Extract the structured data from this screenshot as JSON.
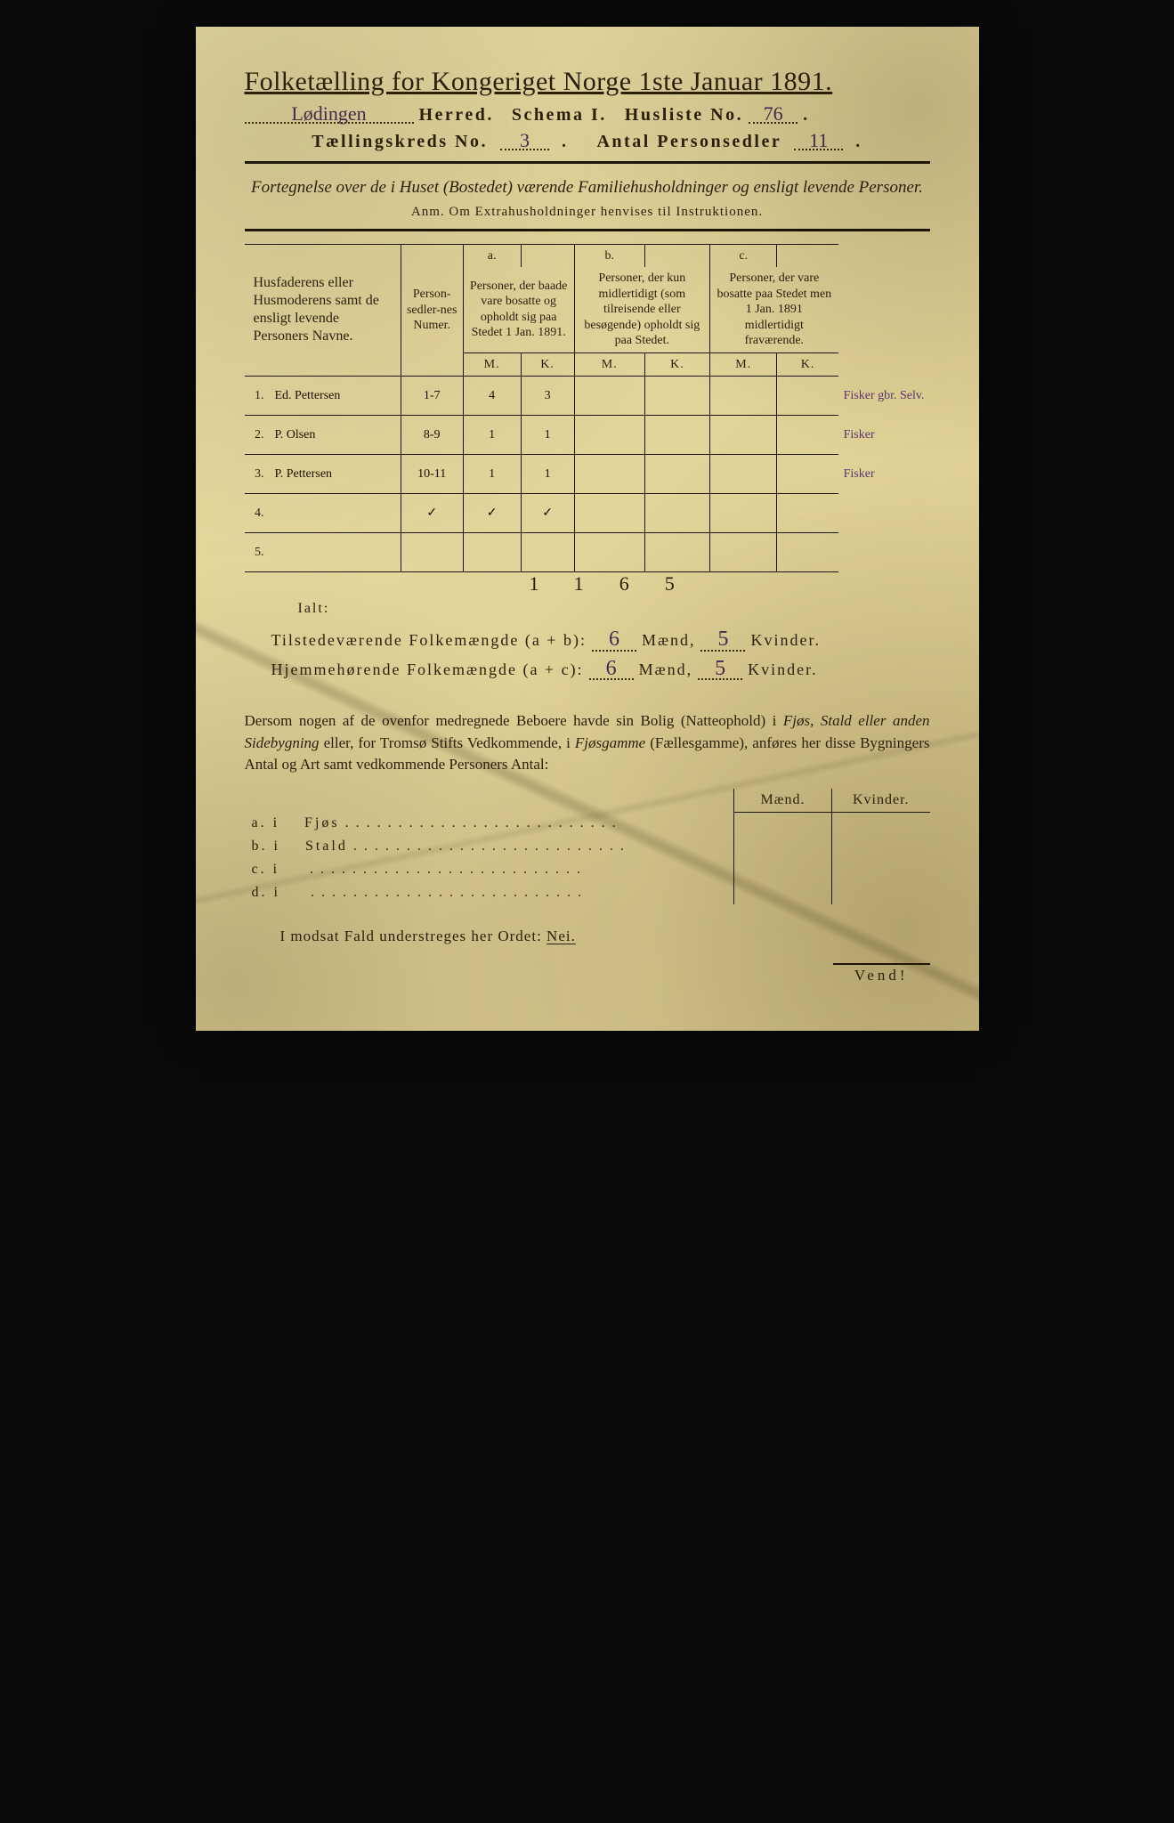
{
  "header": {
    "title": "Folketælling for Kongeriget Norge 1ste Januar 1891.",
    "herred_value": "Lødingen",
    "herred_label": "Herred.",
    "schema_label": "Schema I.",
    "husliste_label": "Husliste No.",
    "husliste_value": "76",
    "kreds_label": "Tællingskreds No.",
    "kreds_value": "3",
    "antal_label": "Antal Personsedler",
    "antal_value": "11"
  },
  "subtitle": "Fortegnelse over de i Huset (Bostedet) værende Familiehusholdninger og ensligt levende Personer.",
  "anm": "Anm.  Om Extrahusholdninger henvises til Instruktionen.",
  "table": {
    "col_name": "Husfaderens eller Husmoderens samt de ensligt levende Personers Navne.",
    "col_num": "Person-sedler-nes Numer.",
    "col_a_head": "a.",
    "col_a": "Personer, der baade vare bosatte og opholdt sig paa Stedet 1 Jan. 1891.",
    "col_b_head": "b.",
    "col_b": "Personer, der kun midlertidigt (som tilreisende eller besøgende) opholdt sig paa Stedet.",
    "col_c_head": "c.",
    "col_c": "Personer, der vare bosatte paa Stedet men 1 Jan. 1891 midlertidigt fraværende.",
    "m": "M.",
    "k": "K.",
    "rows": [
      {
        "n": "1.",
        "name": "Ed. Pettersen",
        "num": "1-7",
        "am": "4",
        "ak": "3",
        "bm": "",
        "bk": "",
        "cm": "",
        "ck": "",
        "note": "Fisker gbr. Selv."
      },
      {
        "n": "2.",
        "name": "P. Olsen",
        "num": "8-9",
        "am": "1",
        "ak": "1",
        "bm": "",
        "bk": "",
        "cm": "",
        "ck": "",
        "note": "Fisker"
      },
      {
        "n": "3.",
        "name": "P. Pettersen",
        "num": "10-11",
        "am": "1",
        "ak": "1",
        "bm": "",
        "bk": "",
        "cm": "",
        "ck": "",
        "note": "Fisker"
      },
      {
        "n": "4.",
        "name": "",
        "num": "✓",
        "am": "✓",
        "ak": "✓",
        "bm": "",
        "bk": "",
        "cm": "",
        "ck": "",
        "note": ""
      },
      {
        "n": "5.",
        "name": "",
        "num": "",
        "am": "",
        "ak": "",
        "bm": "",
        "bk": "",
        "cm": "",
        "ck": "",
        "note": ""
      }
    ],
    "tally": {
      "num": "11",
      "am": "6",
      "ak": "5"
    }
  },
  "ialt": "Ialt:",
  "sums": {
    "line1_a": "Tilstedeværende Folkemængde (a + b):",
    "line1_m": "6",
    "line1_mlbl": "Mænd,",
    "line1_k": "5",
    "line1_klbl": "Kvinder.",
    "line2_a": "Hjemmehørende Folkemængde (a + c):",
    "line2_m": "6",
    "line2_mlbl": "Mænd,",
    "line2_k": "5",
    "line2_klbl": "Kvinder."
  },
  "para": "Dersom nogen af de ovenfor medregnede Beboere havde sin Bolig (Natteophold) i Fjøs, Stald eller anden Sidebygning eller, for Tromsø Stifts Vedkommende, i Fjøsgamme (Fællesgamme), anføres her disse Bygningers Antal og Art samt vedkommende Personers Antal:",
  "outbuildings": {
    "head_m": "Mænd.",
    "head_k": "Kvinder.",
    "rows": [
      {
        "idx": "a.  i",
        "label": "Fjøs"
      },
      {
        "idx": "b.  i",
        "label": "Stald"
      },
      {
        "idx": "c.  i",
        "label": ""
      },
      {
        "idx": "d.  i",
        "label": ""
      }
    ]
  },
  "footer": {
    "text_a": "I modsat Fald understreges her Ordet:",
    "nei": "Nei.",
    "vend": "Vend!"
  },
  "colors": {
    "paper": "#e4d89e",
    "ink": "#1a1406",
    "handwriting": "#1a0f04",
    "purple_ink": "#5a3570"
  }
}
